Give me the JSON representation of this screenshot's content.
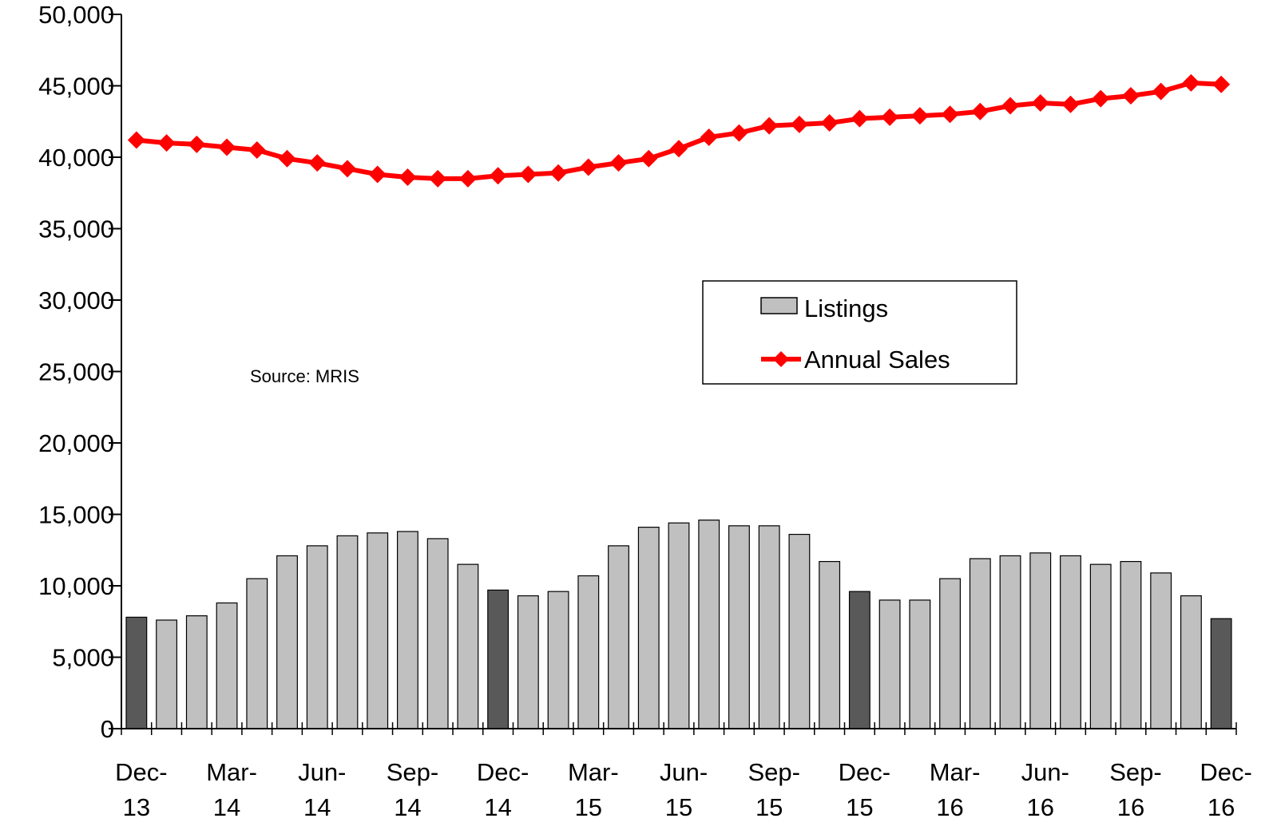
{
  "chart_data": {
    "type": "bar",
    "y_ticks": [
      "0",
      "5,000",
      "10,000",
      "15,000",
      "20,000",
      "25,000",
      "30,000",
      "35,000",
      "40,000",
      "45,000",
      "50,000"
    ],
    "ylim": [
      0,
      50000
    ],
    "x_tick_labels": [
      [
        "Dec-",
        "13"
      ],
      [
        "Mar-",
        "14"
      ],
      [
        "Jun-",
        "14"
      ],
      [
        "Sep-",
        "14"
      ],
      [
        "Dec-",
        "14"
      ],
      [
        "Mar-",
        "15"
      ],
      [
        "Jun-",
        "15"
      ],
      [
        "Sep-",
        "15"
      ],
      [
        "Dec-",
        "15"
      ],
      [
        "Mar-",
        "16"
      ],
      [
        "Jun-",
        "16"
      ],
      [
        "Sep-",
        "16"
      ],
      [
        "Dec-",
        "16"
      ]
    ],
    "months": [
      "Dec-13",
      "Jan-14",
      "Feb-14",
      "Mar-14",
      "Apr-14",
      "May-14",
      "Jun-14",
      "Jul-14",
      "Aug-14",
      "Sep-14",
      "Oct-14",
      "Nov-14",
      "Dec-14",
      "Jan-15",
      "Feb-15",
      "Mar-15",
      "Apr-15",
      "May-15",
      "Jun-15",
      "Jul-15",
      "Aug-15",
      "Sep-15",
      "Oct-15",
      "Nov-15",
      "Dec-15",
      "Jan-16",
      "Feb-16",
      "Mar-16",
      "Apr-16",
      "May-16",
      "Jun-16",
      "Jul-16",
      "Aug-16",
      "Sep-16",
      "Oct-16",
      "Nov-16",
      "Dec-16"
    ],
    "series": [
      {
        "name": "Listings",
        "kind": "bar",
        "color": "#c0c0c0",
        "highlight_color": "#595959",
        "highlight_indices": [
          0,
          12,
          24,
          36
        ],
        "values": [
          7800,
          7600,
          7900,
          8800,
          10500,
          12100,
          12800,
          13500,
          13700,
          13800,
          13300,
          11500,
          9700,
          9300,
          9600,
          10700,
          12800,
          14100,
          14400,
          14600,
          14200,
          14200,
          13600,
          11700,
          9600,
          9000,
          9000,
          10500,
          11900,
          12100,
          12300,
          12100,
          11500,
          11700,
          10900,
          9300,
          7700
        ]
      },
      {
        "name": "Annual Sales",
        "kind": "line",
        "color": "#ff0000",
        "values": [
          41200,
          41000,
          40900,
          40700,
          40500,
          39900,
          39600,
          39200,
          38800,
          38600,
          38500,
          38500,
          38700,
          38800,
          38900,
          39300,
          39600,
          39900,
          40600,
          41400,
          41700,
          42200,
          42300,
          42400,
          42700,
          42800,
          42900,
          43000,
          43200,
          43600,
          43800,
          43700,
          44100,
          44300,
          44600,
          45200,
          45100
        ]
      }
    ],
    "annotation": "Source: MRIS",
    "legend": {
      "placement": "center-right"
    }
  }
}
